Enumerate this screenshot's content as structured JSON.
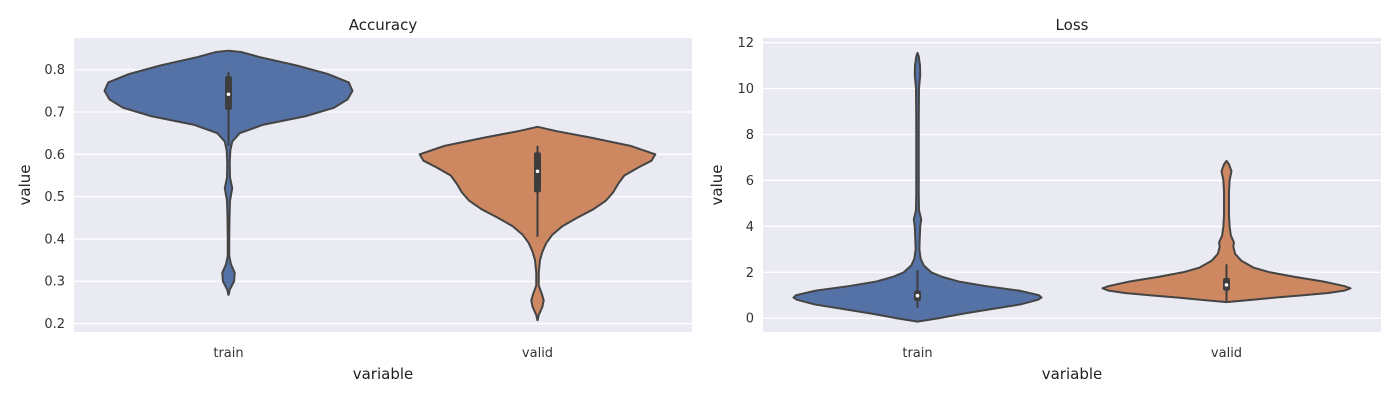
{
  "chart_data": [
    {
      "type": "violin",
      "title": "Accuracy",
      "xlabel": "variable",
      "ylabel": "value",
      "ylim": [
        0.18,
        0.875
      ],
      "yticks": [
        0.2,
        0.3,
        0.4,
        0.5,
        0.6,
        0.7,
        0.8
      ],
      "ytick_labels": [
        "0.2",
        "0.3",
        "0.4",
        "0.5",
        "0.6",
        "0.7",
        "0.8"
      ],
      "categories": [
        "train",
        "valid"
      ],
      "series": [
        {
          "name": "train",
          "color": "#5572a6",
          "density": [
            [
              0.268,
              0.001
            ],
            [
              0.28,
              0.01
            ],
            [
              0.3,
              0.045
            ],
            [
              0.32,
              0.05
            ],
            [
              0.34,
              0.02
            ],
            [
              0.36,
              0.006
            ],
            [
              0.4,
              0.006
            ],
            [
              0.45,
              0.008
            ],
            [
              0.49,
              0.012
            ],
            [
              0.52,
              0.03
            ],
            [
              0.545,
              0.012
            ],
            [
              0.58,
              0.01
            ],
            [
              0.61,
              0.015
            ],
            [
              0.63,
              0.03
            ],
            [
              0.65,
              0.09
            ],
            [
              0.67,
              0.28
            ],
            [
              0.69,
              0.62
            ],
            [
              0.71,
              0.85
            ],
            [
              0.73,
              0.96
            ],
            [
              0.75,
              1.0
            ],
            [
              0.77,
              0.97
            ],
            [
              0.79,
              0.8
            ],
            [
              0.81,
              0.55
            ],
            [
              0.83,
              0.25
            ],
            [
              0.842,
              0.1
            ],
            [
              0.845,
              0.0
            ]
          ],
          "quartiles": [
            0.705,
            0.785
          ],
          "whiskers": [
            0.62,
            0.795
          ],
          "median": 0.742
        },
        {
          "name": "valid",
          "color": "#cd8862",
          "density": [
            [
              0.208,
              0.001
            ],
            [
              0.22,
              0.01
            ],
            [
              0.24,
              0.04
            ],
            [
              0.255,
              0.05
            ],
            [
              0.27,
              0.035
            ],
            [
              0.29,
              0.01
            ],
            [
              0.32,
              0.01
            ],
            [
              0.35,
              0.02
            ],
            [
              0.37,
              0.04
            ],
            [
              0.39,
              0.07
            ],
            [
              0.41,
              0.12
            ],
            [
              0.43,
              0.2
            ],
            [
              0.45,
              0.32
            ],
            [
              0.47,
              0.45
            ],
            [
              0.49,
              0.55
            ],
            [
              0.51,
              0.61
            ],
            [
              0.53,
              0.65
            ],
            [
              0.55,
              0.7
            ],
            [
              0.57,
              0.82
            ],
            [
              0.585,
              0.92
            ],
            [
              0.6,
              0.95
            ],
            [
              0.62,
              0.75
            ],
            [
              0.64,
              0.42
            ],
            [
              0.655,
              0.15
            ],
            [
              0.665,
              0.0
            ]
          ],
          "quartiles": [
            0.51,
            0.605
          ],
          "whiskers": [
            0.405,
            0.62
          ],
          "median": 0.56
        }
      ]
    },
    {
      "type": "violin",
      "title": "Loss",
      "xlabel": "variable",
      "ylabel": "value",
      "ylim": [
        -0.6,
        12.2
      ],
      "yticks": [
        0,
        2,
        4,
        6,
        8,
        10,
        12
      ],
      "ytick_labels": [
        "0",
        "2",
        "4",
        "6",
        "8",
        "10",
        "12"
      ],
      "categories": [
        "train",
        "valid"
      ],
      "series": [
        {
          "name": "train",
          "color": "#5572a6",
          "density": [
            [
              -0.15,
              0.0
            ],
            [
              0.0,
              0.17
            ],
            [
              0.2,
              0.37
            ],
            [
              0.4,
              0.6
            ],
            [
              0.6,
              0.83
            ],
            [
              0.8,
              0.97
            ],
            [
              0.9,
              1.0
            ],
            [
              1.0,
              0.98
            ],
            [
              1.2,
              0.82
            ],
            [
              1.4,
              0.55
            ],
            [
              1.6,
              0.33
            ],
            [
              1.8,
              0.2
            ],
            [
              2.0,
              0.11
            ],
            [
              2.3,
              0.05
            ],
            [
              2.6,
              0.025
            ],
            [
              3.0,
              0.015
            ],
            [
              3.5,
              0.018
            ],
            [
              4.0,
              0.022
            ],
            [
              4.3,
              0.03
            ],
            [
              4.7,
              0.012
            ],
            [
              5.5,
              0.01
            ],
            [
              7.0,
              0.01
            ],
            [
              8.5,
              0.01
            ],
            [
              10.0,
              0.012
            ],
            [
              10.6,
              0.022
            ],
            [
              11.0,
              0.02
            ],
            [
              11.4,
              0.01
            ],
            [
              11.55,
              0.0
            ]
          ],
          "quartiles": [
            0.75,
            1.2
          ],
          "whiskers": [
            0.45,
            2.1
          ],
          "median": 0.98
        },
        {
          "name": "valid",
          "color": "#cd8862",
          "density": [
            [
              0.7,
              0.0
            ],
            [
              0.8,
              0.2
            ],
            [
              0.9,
              0.4
            ],
            [
              1.0,
              0.62
            ],
            [
              1.1,
              0.82
            ],
            [
              1.2,
              0.95
            ],
            [
              1.3,
              1.0
            ],
            [
              1.4,
              0.95
            ],
            [
              1.6,
              0.78
            ],
            [
              1.8,
              0.55
            ],
            [
              2.0,
              0.35
            ],
            [
              2.2,
              0.22
            ],
            [
              2.5,
              0.12
            ],
            [
              2.8,
              0.07
            ],
            [
              3.1,
              0.055
            ],
            [
              3.3,
              0.06
            ],
            [
              3.6,
              0.035
            ],
            [
              4.0,
              0.025
            ],
            [
              4.5,
              0.02
            ],
            [
              5.0,
              0.02
            ],
            [
              5.5,
              0.02
            ],
            [
              6.0,
              0.025
            ],
            [
              6.4,
              0.04
            ],
            [
              6.7,
              0.02
            ],
            [
              6.85,
              0.0
            ]
          ],
          "quartiles": [
            1.2,
            1.75
          ],
          "whiskers": [
            0.75,
            2.35
          ],
          "median": 1.45
        }
      ]
    }
  ]
}
